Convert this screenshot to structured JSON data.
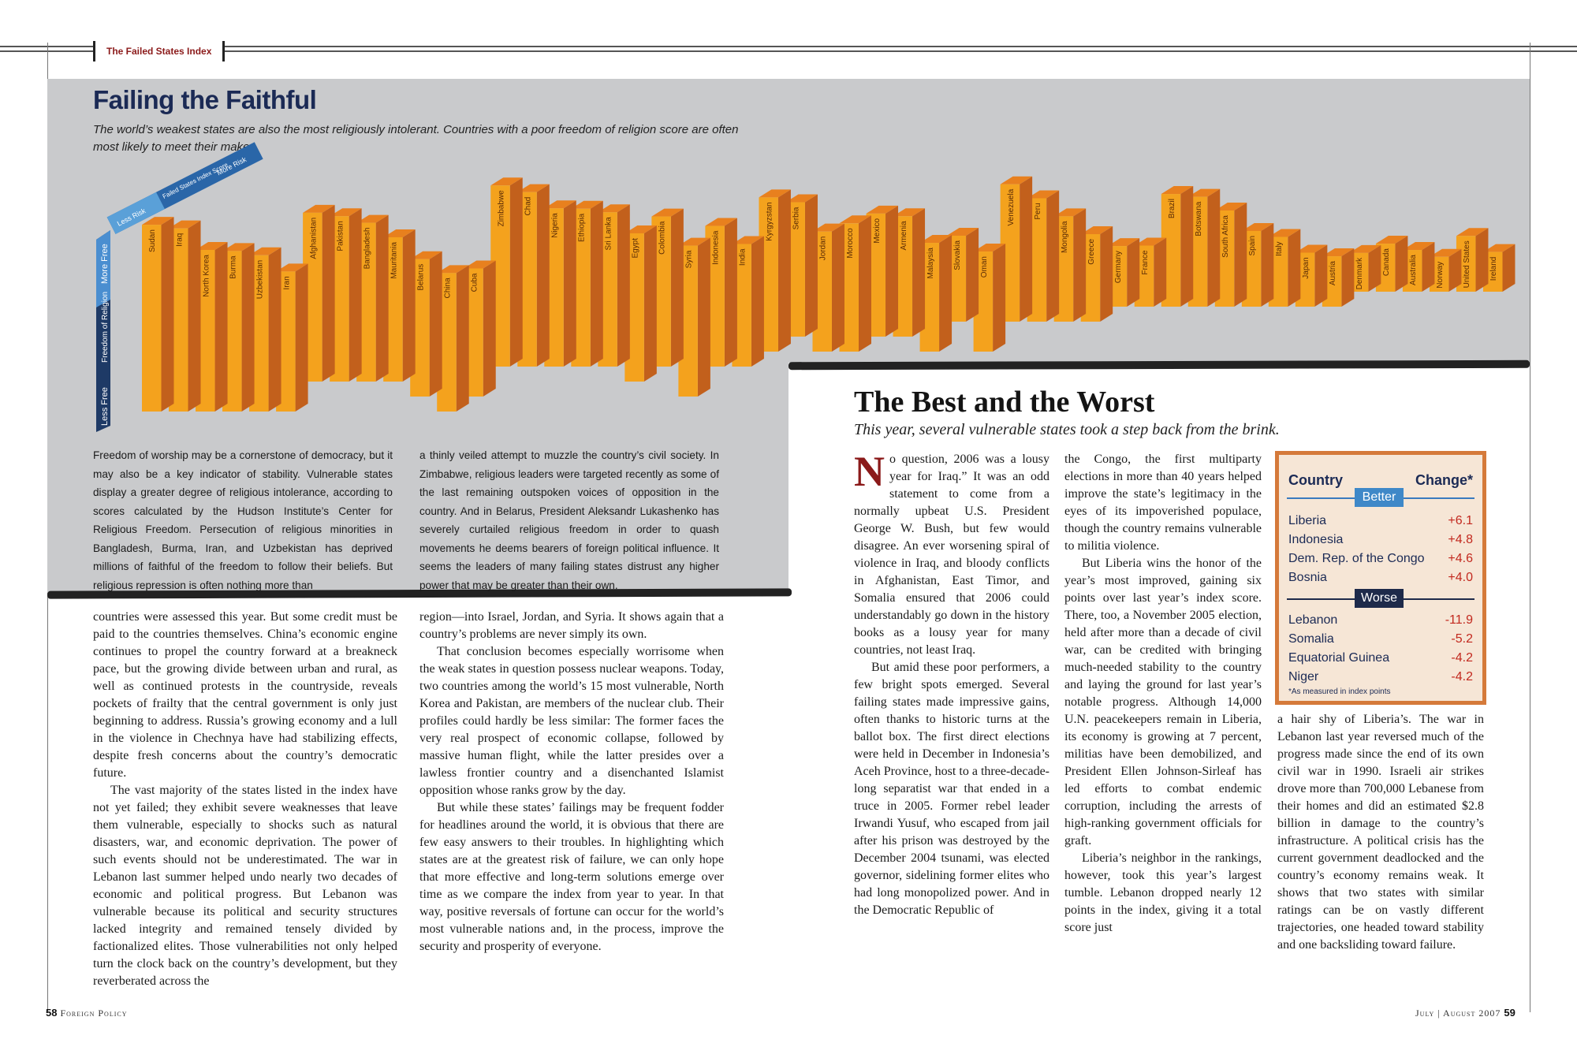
{
  "header": {
    "section_tag": "The Failed States Index"
  },
  "feature": {
    "title": "Failing the Faithful",
    "subtitle": "The world’s weakest states are also the most religiously intolerant. Countries with a poor freedom of religion score are often most likely to meet their maker."
  },
  "chart_data": {
    "type": "bar",
    "categories": [
      "Sudan",
      "Iraq",
      "North Korea",
      "Burma",
      "Uzbekistan",
      "Iran",
      "Afghanistan",
      "Pakistan",
      "Bangladesh",
      "Mauritania",
      "Belarus",
      "China",
      "Cuba",
      "Zimbabwe",
      "Chad",
      "Nigeria",
      "Ethiopia",
      "Sri Lanka",
      "Egypt",
      "Colombia",
      "Syria",
      "Indonesia",
      "India",
      "Kyrgyzstan",
      "Serbia",
      "Jordan",
      "Morocco",
      "Mexico",
      "Armenia",
      "Malaysia",
      "Slovakia",
      "Oman",
      "Venezuela",
      "Peru",
      "Mongolia",
      "Greece",
      "Germany",
      "France",
      "Brazil",
      "Botswana",
      "South Africa",
      "Spain",
      "Italy",
      "Japan",
      "Austria",
      "Denmark",
      "Canada",
      "Australia",
      "Norway",
      "United States",
      "Ireland"
    ],
    "series": [
      {
        "axis": "Freedom of Religion",
        "values": [
          1,
          1,
          1,
          1,
          1,
          1,
          3,
          3,
          3,
          3,
          2,
          1,
          2,
          4,
          4,
          4,
          4,
          4,
          3,
          4,
          2,
          4,
          4,
          5,
          6,
          5,
          5,
          6,
          6,
          5,
          7,
          5,
          7,
          7,
          7,
          7,
          8,
          8,
          8,
          8,
          8,
          8,
          8,
          8,
          8,
          9,
          9,
          9,
          9,
          9,
          9
        ]
      },
      {
        "axis": "Failed States Index Score",
        "values": [
          113.7,
          111.4,
          97.7,
          97.0,
          94.3,
          84.0,
          102.3,
          100.1,
          95.9,
          86.7,
          82.3,
          83.0,
          76.4,
          110.1,
          105.9,
          95.6,
          95.3,
          93.1,
          89.2,
          90.4,
          90.9,
          84.4,
          72.9,
          93.0,
          80.4,
          71.3,
          76.5,
          73.2,
          71.5,
          64.1,
          49.6,
          58.6,
          82.3,
          73.4,
          61.9,
          50.6,
          33.5,
          33.8,
          66.6,
          64.8,
          56.1,
          43.1,
          39.3,
          29.3,
          27.0,
          19.6,
          25.5,
          21.5,
          17.1,
          30.4,
          20.2
        ]
      }
    ],
    "axis_labels": {
      "index": {
        "title": "Failed States Index Score",
        "low": "Less Risk",
        "high": "More Risk"
      },
      "religion": {
        "title": "Freedom of Religion",
        "low": "Less Free",
        "high": "More Free"
      }
    },
    "colors": {
      "front": "#f4a21d",
      "side": "#c2601c",
      "top": "#e8801e"
    }
  },
  "caption": {
    "col1": "Freedom of worship may be a cornerstone of democracy, but it may also be a key indicator of stability. Vulnerable states display a greater degree of religious intolerance, according to scores calculated by the Hudson Institute’s Center for Religious Freedom. Persecution of religious minorities in Bangladesh, Burma, Iran, and Uzbekistan has deprived millions of faithful of the freedom to follow their beliefs. But religious repression is often nothing more than",
    "col2": "a thinly veiled attempt to muzzle the country’s civil society. In Zimbabwe, religious leaders were targeted recently as some of the last remaining outspoken voices of opposition in the country. And in Belarus, President Aleksandr Lukashenko has severely curtailed religious freedom in order to quash movements he deems bearers of foreign political influence. It seems the leaders of many failing states distrust any higher power that may be greater than their own."
  },
  "left_body": {
    "col1": [
      "countries were assessed this year. But some credit must be paid to the countries themselves. China’s economic engine continues to propel the country forward at a breakneck pace, but the growing divide between urban and rural, as well as continued protests in the countryside, reveals pockets of frailty that the central government is only just beginning to address. Russia’s growing economy and a lull in the violence in Chechnya have had stabilizing effects, despite fresh concerns about the country’s democratic future.",
      "The vast majority of the states listed in the index have not yet failed; they exhibit severe weaknesses that leave them vulnerable, especially to shocks such as natural disasters, war, and economic deprivation. The power of such events should not be underestimated. The war in Lebanon last summer helped undo nearly two decades of economic and political progress. But Lebanon was vulnerable because its political and security structures lacked integrity and remained tensely divided by factionalized elites. Those vulnerabilities not only helped turn the clock back on the country’s development, but they reverberated across the"
    ],
    "col2": [
      "region—into Israel, Jordan, and Syria. It shows again that a country’s problems are never simply its own.",
      "That conclusion becomes especially worrisome when the weak states in question possess nuclear weapons. Today, two countries among the world’s 15 most vulnerable, North Korea and Pakistan, are members of the nuclear club. Their profiles could hardly be less similar: The former faces the very real prospect of economic collapse, followed by massive human flight, while the latter presides over a lawless frontier country and a disenchanted Islamist opposition whose ranks grow by the day.",
      "But while these states’ failings may be frequent fodder for headlines around the world, it is obvious that there are few easy answers to their troubles. In highlighting which states are at the greatest risk of failure, we can only hope that more effective and long-term solutions emerge over time as we compare the index from year to year. In that way, positive reversals of fortune can occur for the world’s most vulnerable nations and, in the process, improve the security and prosperity of everyone."
    ]
  },
  "best_worst": {
    "title": "The Best and the Worst",
    "subtitle": "This year, several vulnerable states took a step back from the brink.",
    "dropcap": "N",
    "col1_first": "o question, 2006 was a lousy year for Iraq.” It was an odd statement to come from a normally upbeat U.S. President George W. Bush, but few would disagree. An ever worsening spiral of violence in Iraq, and bloody conflicts in Afghanistan, East Timor, and Somalia ensured that 2006 could understandably go down in the history books as a lousy year for many countries, not least Iraq.",
    "col1_rest": [
      "But amid these poor performers, a few bright spots emerged. Several failing states made impressive gains, often thanks to historic turns at the ballot box. The first direct elections were held in December in Indonesia’s Aceh Province, host to a three-decade-long separatist war that ended in a truce in 2005. Former rebel leader Irwandi Yusuf, who escaped from jail after his prison was destroyed by the December 2004 tsunami, was elected governor, sidelining former elites who had long monopolized power. And in the Democratic Republic of"
    ],
    "col2": [
      "the Congo, the first multiparty elections in more than 40 years helped improve the state’s legitimacy in the eyes of its impoverished populace, though the country remains vulnerable to militia violence.",
      "But Liberia wins the honor of the year’s most improved, gaining six points over last year’s index score. There, too, a November 2005 election, held after more than a decade of civil war, can be credited with bringing much-needed stability to the country and laying the ground for last year’s notable progress. Although 14,000 U.N. peacekeepers remain in Liberia, its economy is growing at 7 percent, militias have been demobilized, and President Ellen Johnson-Sirleaf has led efforts to combat endemic corruption, including the arrests of high-ranking government officials for graft.",
      "Liberia’s neighbor in the rankings, however, took this year’s largest tumble. Lebanon dropped nearly 12 points in the index, giving it a total score just"
    ],
    "col3": "a hair shy of Liberia’s. The war in Lebanon last year reversed much of the progress made since the end of its own civil war in 1990. Israeli air strikes drove more than 700,000 Lebanese from their homes and did an estimated $2.8 billion in damage to the country’s infrastructure. A political crisis has the current government deadlocked and the country’s economy remains weak. It shows that two states with similar ratings can be on vastly different trajectories, one headed toward stability and one backsliding toward failure."
  },
  "sidebar": {
    "col_country": "Country",
    "col_change": "Change*",
    "better_label": "Better",
    "worse_label": "Worse",
    "better": [
      {
        "country": "Liberia",
        "change": "+6.1"
      },
      {
        "country": "Indonesia",
        "change": "+4.8"
      },
      {
        "country": "Dem. Rep. of the Congo",
        "change": "+4.6"
      },
      {
        "country": "Bosnia",
        "change": "+4.0"
      }
    ],
    "worse": [
      {
        "country": "Lebanon",
        "change": "-11.9"
      },
      {
        "country": "Somalia",
        "change": "-5.2"
      },
      {
        "country": "Equatorial Guinea",
        "change": "-4.2"
      },
      {
        "country": "Niger",
        "change": "-4.2"
      }
    ],
    "note": "*As measured in index points"
  },
  "footer": {
    "left_page": "58",
    "left_name": "Foreign Policy",
    "right_date": "July | August 2007",
    "right_page": "59"
  }
}
